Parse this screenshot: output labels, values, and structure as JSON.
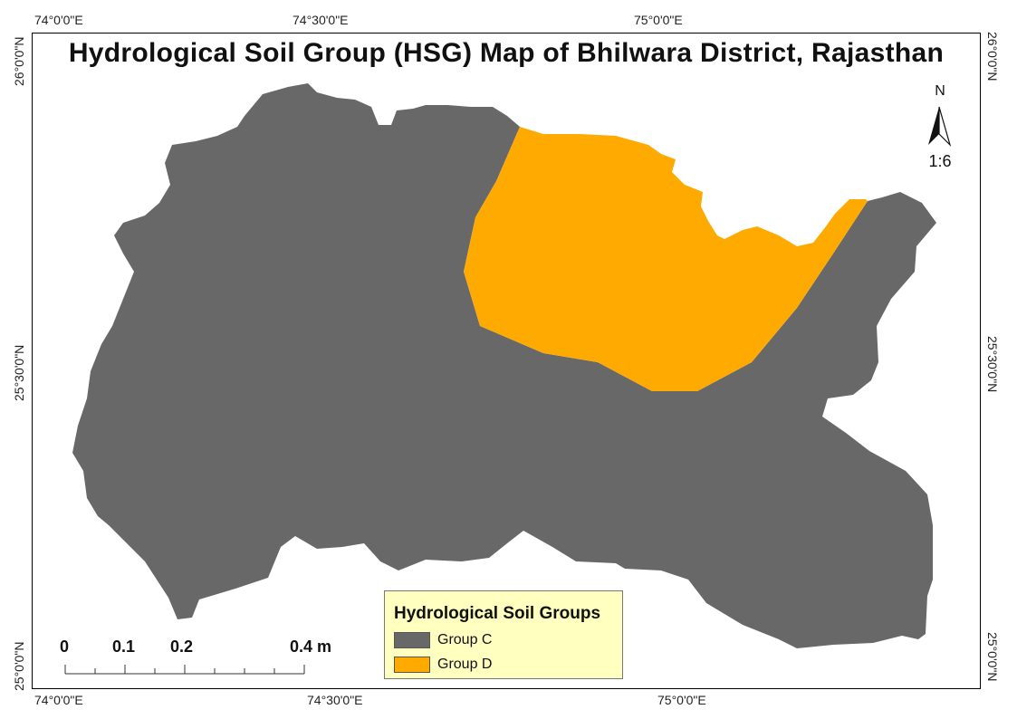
{
  "title": "Hydrological Soil Group (HSG) Map of Bhilwara District, Rajasthan",
  "coordinates": {
    "top": [
      "74°0'0\"E",
      "74°30'0\"E",
      "75°0'0\"E"
    ],
    "bottom": [
      "74°0'0\"E",
      "74°30'0\"E",
      "75°0'0\"E"
    ],
    "left": [
      "26°0'0\"N",
      "25°30'0\"N",
      "25°0'0\"N"
    ],
    "right": [
      "26°0'0\"N",
      "25°30'0\"N",
      "25°0'0\"N"
    ]
  },
  "north_arrow": {
    "label": "N",
    "scale_text": "1:6"
  },
  "legend": {
    "title": "Hydrological Soil Groups",
    "items": [
      {
        "label": "Group C",
        "color": "#686868"
      },
      {
        "label": "Group D",
        "color": "#ffaa00"
      }
    ]
  },
  "scale_bar": {
    "labels": [
      "0",
      "0.1",
      "0.2",
      "0.4 m"
    ]
  },
  "colors": {
    "group_c": "#686868",
    "group_d": "#ffaa00",
    "background": "#ffffff"
  }
}
